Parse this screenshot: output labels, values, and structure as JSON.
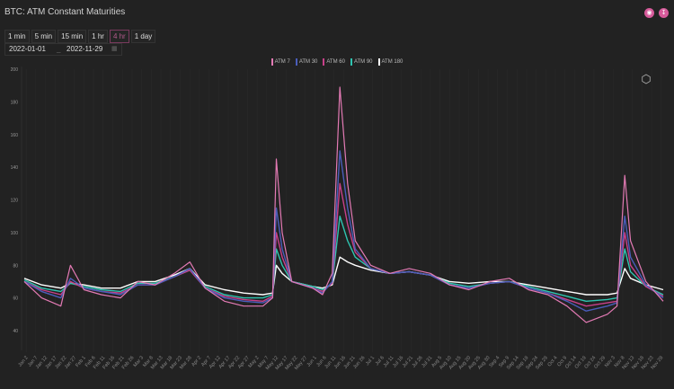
{
  "title": "BTC: ATM Constant Maturities",
  "toolbar": {
    "intervals": [
      "1 min",
      "5 min",
      "15 min",
      "1 hr",
      "4 hr",
      "1 day"
    ],
    "active_interval": "4 hr",
    "start_date": "2022-01-01",
    "end_date": "2022-11-29",
    "icons": [
      "camera-icon",
      "download-icon",
      "calendar-icon",
      "hexagon-icon"
    ]
  },
  "chart_data": {
    "type": "line",
    "title": "",
    "xlabel": "",
    "ylabel": "",
    "ylim": [
      40,
      200
    ],
    "yticks": [
      40,
      60,
      80,
      100,
      120,
      140,
      160,
      180,
      200
    ],
    "xlim": [
      "2022-01-01",
      "2022-11-29"
    ],
    "grid": "vertical",
    "legend": "top-center",
    "x": [
      "2022-01-01",
      "2022-01-10",
      "2022-01-20",
      "2022-01-25",
      "2022-02-01",
      "2022-02-10",
      "2022-02-20",
      "2022-03-01",
      "2022-03-10",
      "2022-03-20",
      "2022-03-28",
      "2022-04-05",
      "2022-04-15",
      "2022-04-25",
      "2022-05-05",
      "2022-05-10",
      "2022-05-12",
      "2022-05-15",
      "2022-05-20",
      "2022-05-31",
      "2022-06-05",
      "2022-06-10",
      "2022-06-14",
      "2022-06-18",
      "2022-06-22",
      "2022-06-30",
      "2022-07-10",
      "2022-07-20",
      "2022-07-31",
      "2022-08-10",
      "2022-08-20",
      "2022-08-31",
      "2022-09-10",
      "2022-09-20",
      "2022-09-30",
      "2022-10-10",
      "2022-10-20",
      "2022-10-31",
      "2022-11-05",
      "2022-11-09",
      "2022-11-12",
      "2022-11-20",
      "2022-11-29"
    ],
    "series": [
      {
        "name": "ATM 180",
        "color": "#ffffff",
        "values": [
          72,
          68,
          66,
          69,
          68,
          66,
          66,
          70,
          70,
          74,
          78,
          68,
          65,
          63,
          62,
          63,
          80,
          75,
          70,
          67,
          66,
          68,
          85,
          82,
          80,
          77,
          75,
          76,
          74,
          70,
          69,
          70,
          70,
          68,
          66,
          64,
          62,
          62,
          63,
          78,
          72,
          68,
          65
        ]
      },
      {
        "name": "ATM 90",
        "color": "#2ec4b0",
        "values": [
          71,
          66,
          64,
          69,
          67,
          65,
          64,
          69,
          69,
          73,
          77,
          67,
          62,
          60,
          60,
          62,
          90,
          80,
          70,
          67,
          65,
          69,
          110,
          95,
          85,
          78,
          75,
          76,
          74,
          69,
          67,
          69,
          70,
          67,
          64,
          61,
          58,
          59,
          60,
          90,
          76,
          67,
          62
        ]
      },
      {
        "name": "ATM 60",
        "color": "#c8408a",
        "values": [
          70,
          65,
          62,
          70,
          66,
          64,
          63,
          68,
          68,
          73,
          77,
          66,
          61,
          59,
          58,
          61,
          100,
          85,
          70,
          66,
          64,
          69,
          130,
          105,
          88,
          78,
          75,
          76,
          74,
          68,
          66,
          69,
          70,
          66,
          63,
          59,
          55,
          57,
          58,
          100,
          80,
          67,
          61
        ]
      },
      {
        "name": "ATM 30",
        "color": "#4a5dba",
        "values": [
          70,
          64,
          60,
          72,
          66,
          64,
          62,
          68,
          68,
          73,
          78,
          66,
          60,
          58,
          57,
          60,
          115,
          90,
          70,
          66,
          63,
          70,
          150,
          115,
          90,
          78,
          75,
          76,
          74,
          68,
          66,
          69,
          70,
          66,
          63,
          58,
          52,
          55,
          57,
          110,
          85,
          68,
          60
        ]
      },
      {
        "name": "ATM 7",
        "color": "#e37ab4",
        "values": [
          70,
          60,
          55,
          80,
          65,
          62,
          60,
          70,
          68,
          75,
          82,
          66,
          58,
          55,
          55,
          60,
          145,
          100,
          70,
          66,
          62,
          75,
          189,
          130,
          95,
          80,
          75,
          78,
          75,
          68,
          65,
          70,
          72,
          65,
          62,
          55,
          45,
          50,
          55,
          135,
          95,
          70,
          58
        ]
      }
    ],
    "legend_order": [
      "ATM 7",
      "ATM 30",
      "ATM 60",
      "ATM 90",
      "ATM 180"
    ],
    "xtick_labels": [
      "Jan 2",
      "Jan 7",
      "Jan 12",
      "Jan 17",
      "Jan 22",
      "Jan 27",
      "Feb 1",
      "Feb 6",
      "Feb 11",
      "Feb 16",
      "Feb 21",
      "Feb 26",
      "Mar 3",
      "Mar 8",
      "Mar 13",
      "Mar 18",
      "Mar 23",
      "Mar 28",
      "Apr 2",
      "Apr 7",
      "Apr 12",
      "Apr 17",
      "Apr 22",
      "Apr 27",
      "May 2",
      "May 7",
      "May 12",
      "May 17",
      "May 22",
      "May 27",
      "Jun 1",
      "Jun 6",
      "Jun 11",
      "Jun 16",
      "Jun 21",
      "Jun 26",
      "Jul 1",
      "Jul 6",
      "Jul 11",
      "Jul 16",
      "Jul 21",
      "Jul 26",
      "Jul 31",
      "Aug 5",
      "Aug 10",
      "Aug 15",
      "Aug 20",
      "Aug 25",
      "Aug 30",
      "Sep 4",
      "Sep 9",
      "Sep 14",
      "Sep 19",
      "Sep 24",
      "Sep 29",
      "Oct 4",
      "Oct 9",
      "Oct 14",
      "Oct 19",
      "Oct 24",
      "Oct 29",
      "Nov 3",
      "Nov 8",
      "Nov 13",
      "Nov 18",
      "Nov 23",
      "Nov 28"
    ]
  }
}
